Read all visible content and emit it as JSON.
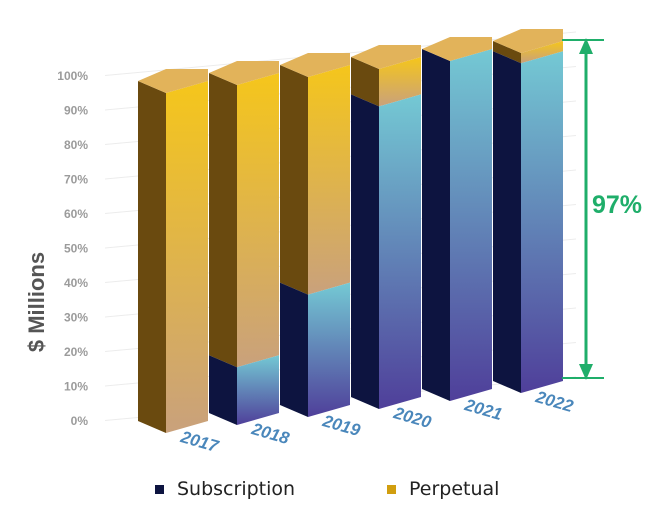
{
  "chart_data": {
    "type": "bar",
    "stacked": true,
    "percent_stacked": true,
    "style": "3d",
    "categories": [
      "2017",
      "2018",
      "2019",
      "2020",
      "2021",
      "2022"
    ],
    "series": [
      {
        "name": "Subscription",
        "values": [
          0,
          17,
          36,
          89,
          100,
          97
        ]
      },
      {
        "name": "Perpetual",
        "values": [
          100,
          83,
          64,
          11,
          0,
          3
        ]
      }
    ],
    "ylabel": "$ Millions",
    "y_ticks": [
      "0%",
      "10%",
      "20%",
      "30%",
      "40%",
      "50%",
      "60%",
      "70%",
      "80%",
      "90%",
      "100%"
    ],
    "ylim": [
      0,
      100
    ],
    "grid": true,
    "annotation": {
      "label": "97%",
      "color": "#1fae6a"
    },
    "legend_position": "bottom",
    "colors": {
      "subscription_side": "#0d1440",
      "subscription_front_top": "#74c9d4",
      "subscription_front_bottom": "#4f3f9a",
      "perpetual_side": "#6a4a0f",
      "perpetual_front_top": "#f5c61b",
      "perpetual_front_bottom": "#c9a17c",
      "top_cap": "#e2b35a",
      "axis_text": "#9b9b9b",
      "category_text": "#4a87bb"
    }
  },
  "legend": {
    "items": [
      {
        "label": "Subscription",
        "color": "#0d1440"
      },
      {
        "label": "Perpetual",
        "color": "#d19e0f"
      }
    ]
  }
}
